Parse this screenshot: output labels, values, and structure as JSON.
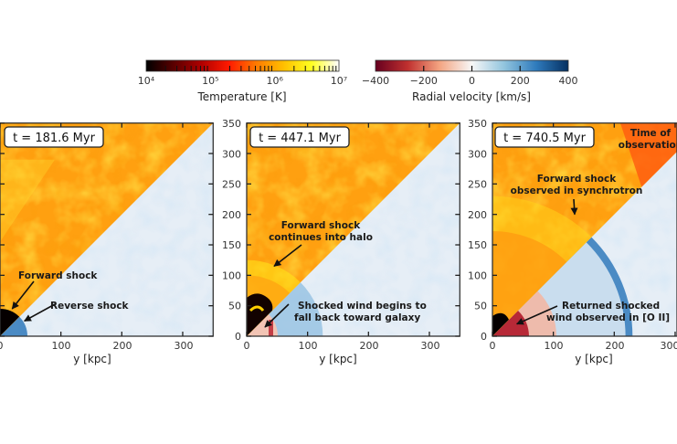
{
  "colors": {
    "temp_stops": [
      "#000000",
      "#5a0000",
      "#b00000",
      "#ff1a00",
      "#ff7a00",
      "#ffc000",
      "#ffff20",
      "#ffffff"
    ],
    "vel_stops": [
      "#67001f",
      "#c0302f",
      "#f4a582",
      "#f7f7f7",
      "#92c5de",
      "#2f7bbd",
      "#053061"
    ],
    "hot_gas": "#ffa010",
    "cold_halo": "#e6eef6"
  },
  "chart_data": {
    "type": "heatmap",
    "colorbars": [
      {
        "name": "temperature",
        "label": "Temperature [K]",
        "scale": "log",
        "range": [
          10000,
          10000000
        ],
        "tick_labels": [
          "10⁴",
          "10⁵",
          "10⁶",
          "10⁷"
        ]
      },
      {
        "name": "radial-velocity",
        "label": "Radial velocity [km/s]",
        "scale": "linear",
        "range": [
          -400,
          400
        ],
        "ticks": [
          -400,
          -200,
          0,
          200,
          400
        ],
        "tick_labels": [
          "−400",
          "−200",
          "0",
          "200",
          "400"
        ]
      }
    ],
    "xlabel": "y [kpc]",
    "xlim": [
      0,
      350
    ],
    "ylim": [
      0,
      350
    ],
    "x_ticks": [
      0,
      100,
      200,
      300
    ],
    "y_ticks": [
      0,
      50,
      100,
      150,
      200,
      250,
      300,
      350
    ],
    "panels": [
      {
        "time_label": "t = 181.6 Myr",
        "forward_shock_radius_kpc": 45,
        "reverse_shock_radius_kpc": 45,
        "annotations": [
          {
            "text": [
              "Forward shock"
            ],
            "target_kpc": [
              20,
              45
            ]
          },
          {
            "text": [
              "Reverse shock"
            ],
            "target_kpc": [
              40,
              25
            ]
          }
        ]
      },
      {
        "time_label": "t = 447.1 Myr",
        "forward_shock_radius_kpc": 125,
        "reverse_shock_radius_kpc": 125,
        "annotations": [
          {
            "text": [
              "Forward shock",
              "continues into halo"
            ],
            "target_kpc": [
              45,
              115
            ]
          },
          {
            "text": [
              "Shocked wind begins to",
              "fall back toward galaxy"
            ],
            "target_kpc": [
              30,
              15
            ]
          }
        ]
      },
      {
        "time_label": "t = 740.5 Myr",
        "forward_shock_radius_kpc": 230,
        "reverse_shock_radius_kpc": 230,
        "annotations": [
          {
            "text": [
              "Time of",
              "observation"
            ],
            "target_kpc": null
          },
          {
            "text": [
              "Forward shock",
              "observed in synchrotron"
            ],
            "target_kpc": [
              135,
              200
            ]
          },
          {
            "text": [
              "Returned shocked",
              "wind observed in [O II]"
            ],
            "target_kpc": [
              40,
              20
            ]
          }
        ]
      }
    ]
  }
}
